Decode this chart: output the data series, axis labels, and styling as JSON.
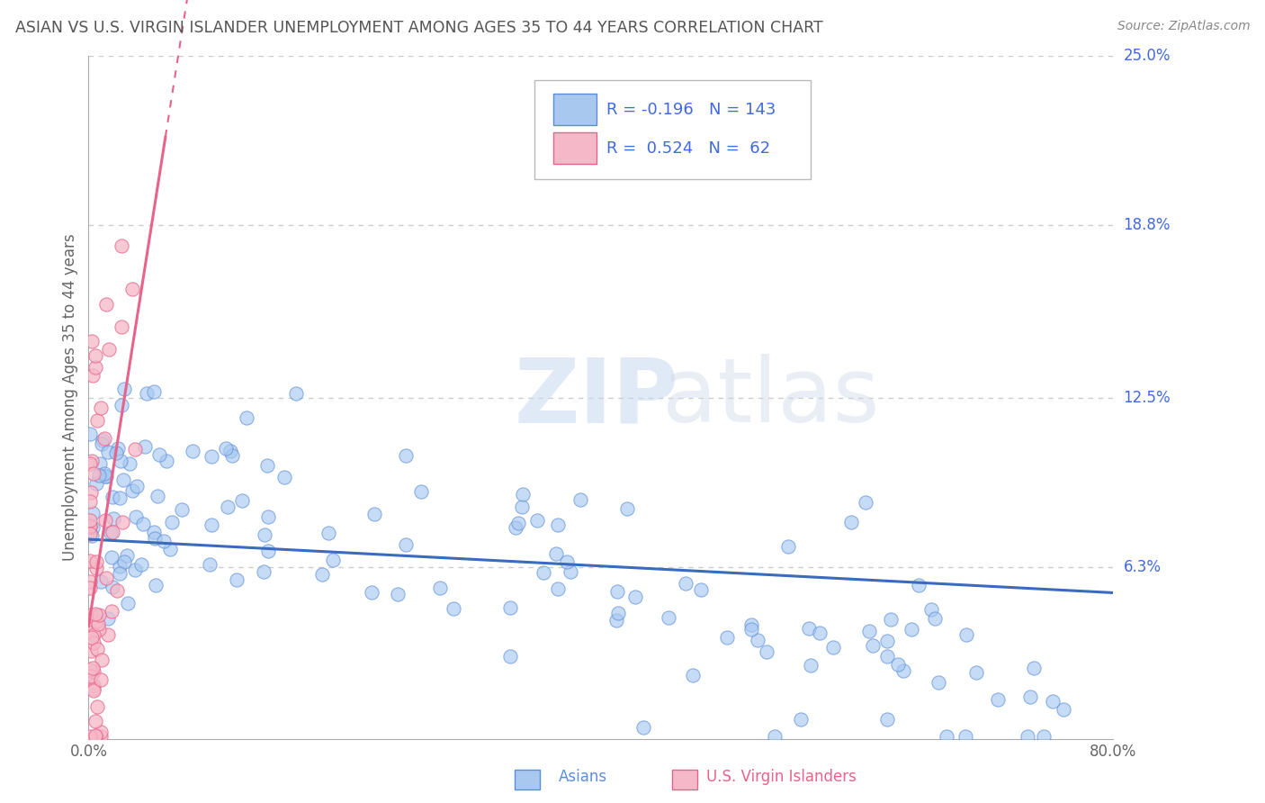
{
  "title": "ASIAN VS U.S. VIRGIN ISLANDER UNEMPLOYMENT AMONG AGES 35 TO 44 YEARS CORRELATION CHART",
  "source": "Source: ZipAtlas.com",
  "ylabel": "Unemployment Among Ages 35 to 44 years",
  "xlim": [
    0.0,
    0.8
  ],
  "ylim": [
    0.0,
    0.25
  ],
  "xtick_vals": [
    0.0,
    0.1,
    0.2,
    0.3,
    0.4,
    0.5,
    0.6,
    0.7,
    0.8
  ],
  "xtick_labels": [
    "0.0%",
    "",
    "",
    "",
    "",
    "",
    "",
    "",
    "80.0%"
  ],
  "asian_fill": "#a8c8f0",
  "asian_edge": "#5b8dd9",
  "vi_fill": "#f5b8c8",
  "vi_edge": "#e8638a",
  "asian_line_color": "#3a6bbf",
  "vi_line_color": "#e8638a",
  "R_asian": -0.196,
  "N_asian": 143,
  "R_vi": 0.524,
  "N_vi": 62,
  "background_color": "#ffffff",
  "watermark_zip": "ZIP",
  "watermark_atlas": "atlas",
  "grid_color": "#cccccc",
  "title_color": "#555555",
  "axis_label_color": "#4169E1",
  "source_color": "#888888",
  "ytick_positions": [
    0.063,
    0.125,
    0.188,
    0.25
  ],
  "ytick_labels": [
    "6.3%",
    "12.5%",
    "18.8%",
    "25.0%"
  ]
}
